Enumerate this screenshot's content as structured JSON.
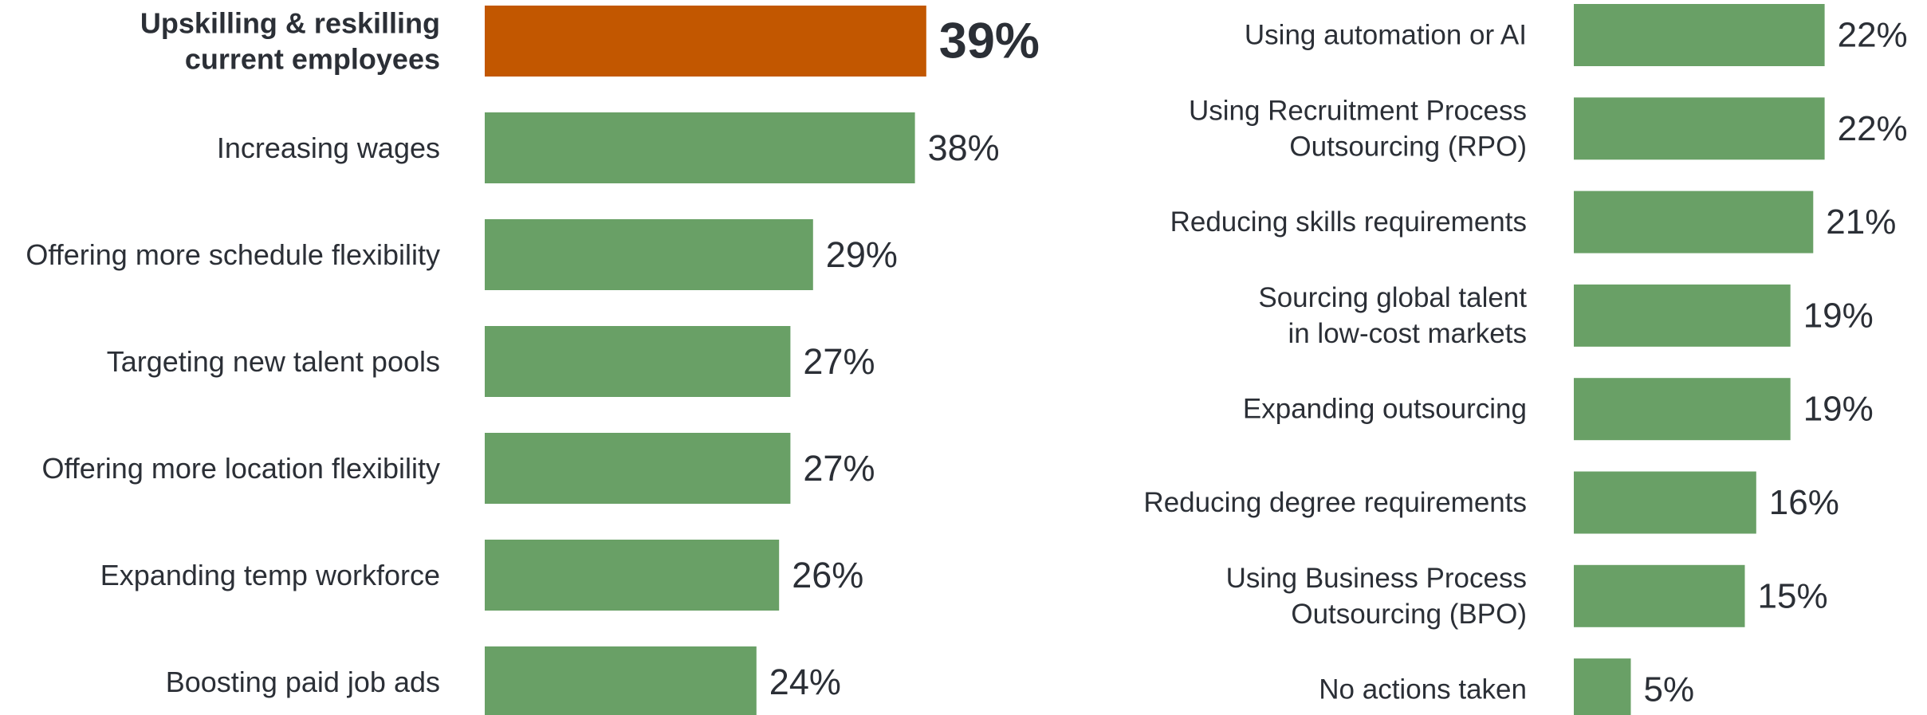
{
  "colors": {
    "highlight": "#c25700",
    "bar": "#69a066",
    "label_text": "#2b2f36",
    "value_text": "#2b2f36"
  },
  "chart_data": [
    {
      "type": "bar",
      "orientation": "horizontal",
      "categories": [
        [
          "Upskilling & reskilling",
          "current employees"
        ],
        [
          "Increasing wages"
        ],
        [
          "Offering more schedule flexibility"
        ],
        [
          "Targeting new talent pools"
        ],
        [
          "Offering more location flexibility"
        ],
        [
          "Expanding temp workforce"
        ],
        [
          "Boosting paid job ads"
        ]
      ],
      "values": [
        39,
        38,
        29,
        27,
        27,
        26,
        24
      ],
      "value_labels": [
        "39%",
        "38%",
        "29%",
        "27%",
        "27%",
        "26%",
        "24%"
      ],
      "highlight_index": 0,
      "xlim": [
        0,
        100
      ],
      "grid": false,
      "legend": "none"
    },
    {
      "type": "bar",
      "orientation": "horizontal",
      "categories": [
        [
          "Using automation or AI"
        ],
        [
          "Using Recruitment Process",
          "Outsourcing (RPO)"
        ],
        [
          "Reducing skills requirements"
        ],
        [
          "Sourcing global talent",
          "in low-cost markets"
        ],
        [
          "Expanding outsourcing"
        ],
        [
          "Reducing degree requirements"
        ],
        [
          "Using Business Process",
          "Outsourcing (BPO)"
        ],
        [
          "No actions taken"
        ]
      ],
      "values": [
        22,
        22,
        21,
        19,
        19,
        16,
        15,
        5
      ],
      "value_labels": [
        "22%",
        "22%",
        "21%",
        "19%",
        "19%",
        "16%",
        "15%",
        "5%"
      ],
      "highlight_index": -1,
      "xlim": [
        0,
        100
      ],
      "grid": false,
      "legend": "none"
    }
  ]
}
